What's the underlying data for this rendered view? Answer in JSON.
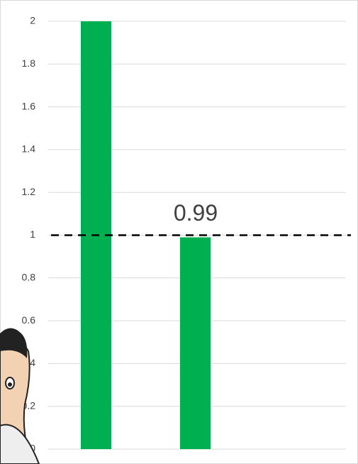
{
  "chart_data": {
    "type": "bar",
    "categories": [
      null,
      null,
      null
    ],
    "values": [
      2,
      0.99,
      null
    ],
    "color": "#00b050",
    "ylim": [
      0,
      2
    ],
    "yticks": [
      0,
      0.2,
      0.4,
      0.6,
      0.8,
      1,
      1.2,
      1.4,
      1.6,
      1.8,
      2
    ],
    "grid": true,
    "reference_line": 1
  }
}
